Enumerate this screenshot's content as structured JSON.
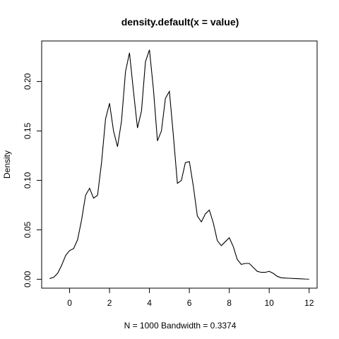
{
  "chart_data": {
    "type": "line",
    "title": "density.default(x = value)",
    "xlabel": "N = 1000   Bandwidth = 0.3374",
    "ylabel": "Density",
    "xlim": [
      -1.4,
      12.4
    ],
    "ylim": [
      -0.009,
      0.241
    ],
    "x_ticks": [
      0,
      2,
      4,
      6,
      8,
      10,
      12
    ],
    "x_tick_labels": [
      "0",
      "2",
      "4",
      "6",
      "8",
      "10",
      "12"
    ],
    "y_ticks": [
      0.0,
      0.05,
      0.1,
      0.15,
      0.2
    ],
    "y_tick_labels": [
      "0.00",
      "0.05",
      "0.10",
      "0.15",
      "0.20"
    ],
    "grid": false,
    "legend": "none",
    "series": [
      {
        "color": "#000000",
        "x": [
          -1.0,
          -0.8,
          -0.6,
          -0.4,
          -0.2,
          0.0,
          0.2,
          0.4,
          0.6,
          0.8,
          1.0,
          1.2,
          1.4,
          1.6,
          1.8,
          2.0,
          2.2,
          2.4,
          2.6,
          2.8,
          3.0,
          3.2,
          3.4,
          3.6,
          3.8,
          4.0,
          4.2,
          4.4,
          4.6,
          4.8,
          5.0,
          5.2,
          5.4,
          5.6,
          5.8,
          6.0,
          6.2,
          6.4,
          6.6,
          6.8,
          7.0,
          7.2,
          7.4,
          7.6,
          7.8,
          8.0,
          8.2,
          8.4,
          8.6,
          8.8,
          9.0,
          9.2,
          9.4,
          9.6,
          9.8,
          10.0,
          10.2,
          10.4,
          10.6,
          10.8,
          11.0,
          11.2,
          11.4,
          11.6,
          11.8,
          12.0
        ],
        "y": [
          0.0007,
          0.002,
          0.006,
          0.014,
          0.024,
          0.029,
          0.031,
          0.04,
          0.06,
          0.085,
          0.092,
          0.082,
          0.085,
          0.118,
          0.162,
          0.178,
          0.15,
          0.134,
          0.16,
          0.21,
          0.229,
          0.19,
          0.153,
          0.17,
          0.22,
          0.232,
          0.192,
          0.14,
          0.15,
          0.183,
          0.19,
          0.145,
          0.097,
          0.1,
          0.118,
          0.119,
          0.094,
          0.064,
          0.058,
          0.066,
          0.07,
          0.057,
          0.039,
          0.034,
          0.038,
          0.042,
          0.033,
          0.02,
          0.015,
          0.016,
          0.016,
          0.012,
          0.008,
          0.007,
          0.007,
          0.008,
          0.006,
          0.003,
          0.0015,
          0.0012,
          0.001,
          0.0008,
          0.0006,
          0.0004,
          0.0002,
          0.0001
        ]
      }
    ]
  }
}
